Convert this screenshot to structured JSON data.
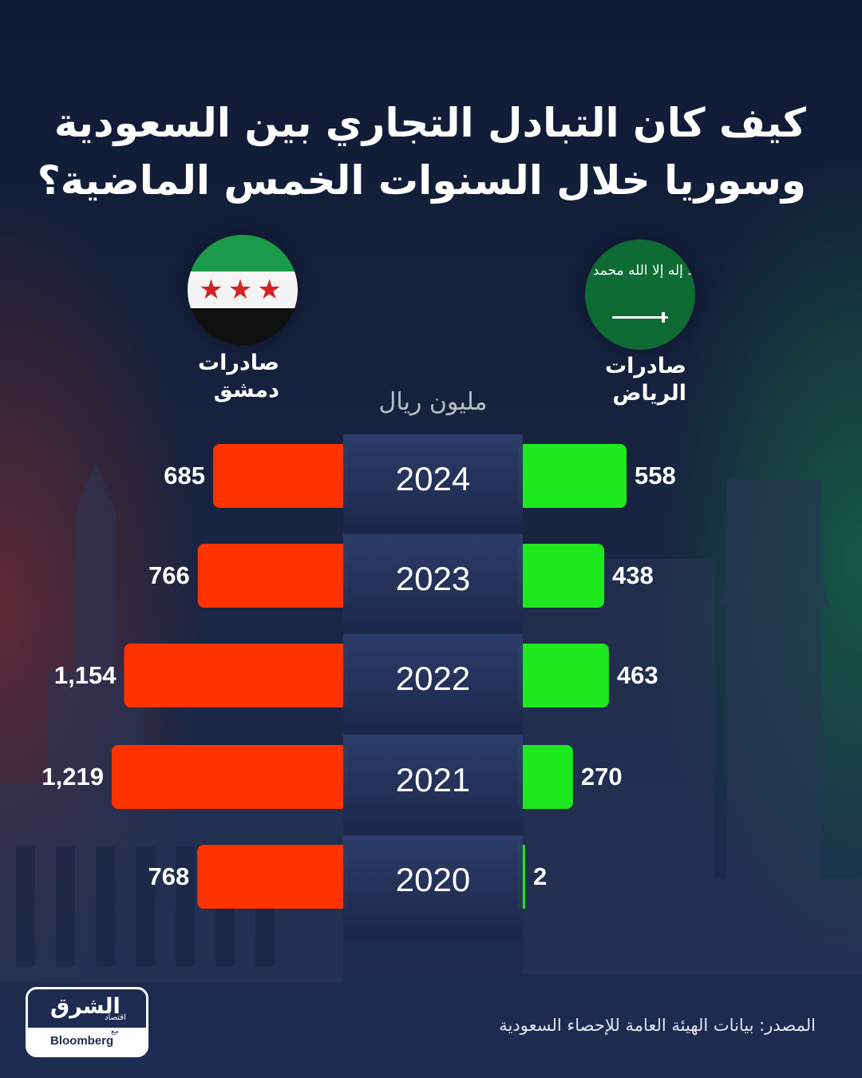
{
  "title": {
    "line1": "كيف كان التبادل التجاري بين السعودية",
    "line2": "وسوريا خلال السنوات الخمس الماضية؟"
  },
  "flags": {
    "syria": {
      "icon": "syria-flag-icon",
      "stars": "★★★"
    },
    "saudi": {
      "icon": "saudi-flag-icon",
      "script": "لا إله إلا الله محمد رسول الله"
    }
  },
  "labels": {
    "syria": {
      "line1": "صادرات",
      "line2": "دمشق"
    },
    "saudi": {
      "line1": "صادرات",
      "line2": "الرياض"
    }
  },
  "unit": "مليون ريال",
  "chart_data": {
    "type": "bar",
    "categories": [
      "2024",
      "2023",
      "2022",
      "2021",
      "2020"
    ],
    "series": [
      {
        "name": "صادرات دمشق",
        "values": [
          685,
          766,
          1154,
          1219,
          768
        ],
        "labels": [
          "685",
          "766",
          "1,154",
          "1,219",
          "768"
        ],
        "color": "#ff3300"
      },
      {
        "name": "صادرات الرياض",
        "values": [
          558,
          438,
          463,
          270,
          2
        ],
        "labels": [
          "558",
          "438",
          "463",
          "270",
          "2"
        ],
        "color": "#1ee81e"
      }
    ]
  },
  "source": "المصدر: بيانات الهيئة العامة للإحصاء السعودية",
  "logo": {
    "brand": "الشرق",
    "sub": "اقتصاد",
    "with": "مع",
    "partner": "Bloomberg"
  },
  "colors": {
    "background": "#17223f",
    "damascus": "#ff3300",
    "riyadh": "#1ee81e",
    "text": "#ffffff"
  }
}
